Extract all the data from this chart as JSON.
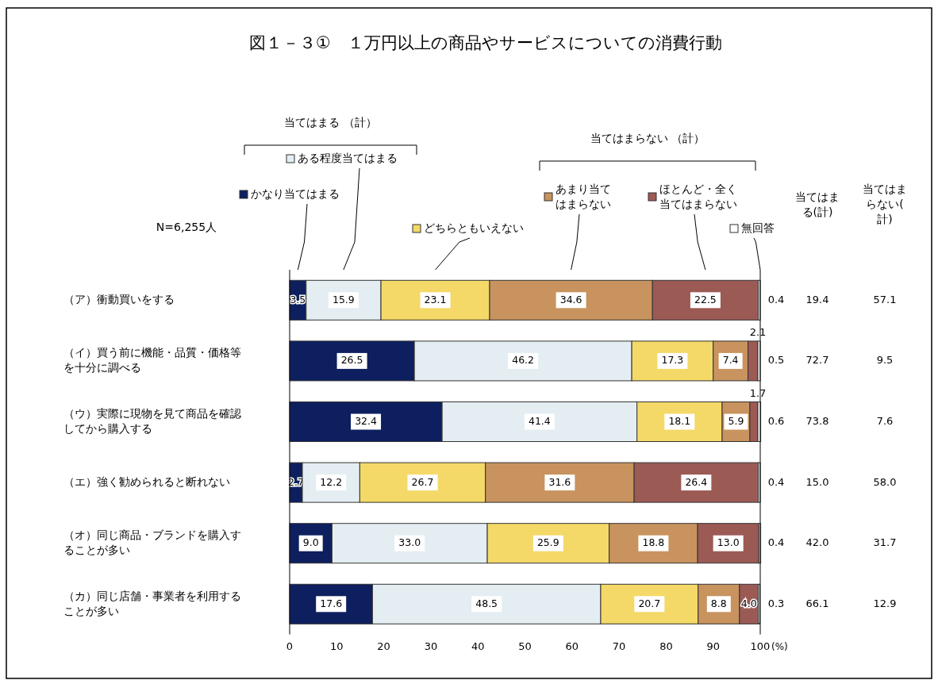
{
  "chart_data": {
    "type": "bar",
    "orientation": "horizontal",
    "stacked": true,
    "legend": "top",
    "title": "図１－３①　１万円以上の商品やサービスについての消費行動",
    "xlabel": "(%)",
    "categories": [
      "（ア）衝動買いをする",
      "（イ）買う前に機能・品質・価格等を十分に調べる",
      "（ウ）実際に現物を見て商品を確認してから購入する",
      "（エ）強く勧められると断れない",
      "（オ）同じ商品・ブランドを購入することが多い",
      "（カ）同じ店舗・事業者を利用することが多い"
    ],
    "xlim": [
      0,
      100
    ],
    "xticks": [
      0,
      10,
      20,
      30,
      40,
      50,
      60,
      70,
      80,
      90,
      100
    ],
    "series": [
      {
        "name": "かなり当てはまる",
        "color": "#0d1f5e",
        "values": [
          3.5,
          26.5,
          32.4,
          2.7,
          9.0,
          17.6
        ],
        "value_labels": [
          "3.5",
          "26.5",
          "32.4",
          "2.7",
          "9.0",
          "17.6"
        ]
      },
      {
        "name": "ある程度当てはまる",
        "color": "#e4eef2",
        "values": [
          15.9,
          46.2,
          41.4,
          12.2,
          33.0,
          48.5
        ],
        "value_labels": [
          "15.9",
          "46.2",
          "41.4",
          "12.2",
          "33.0",
          "48.5"
        ]
      },
      {
        "name": "どちらともいえない",
        "color": "#f4d968",
        "values": [
          23.1,
          17.3,
          18.1,
          26.7,
          25.9,
          20.7
        ],
        "value_labels": [
          "23.1",
          "17.3",
          "18.1",
          "26.7",
          "25.9",
          "20.7"
        ]
      },
      {
        "name": "あまり当てはまらない",
        "color": "#c8935e",
        "values": [
          34.6,
          7.4,
          5.9,
          31.6,
          18.8,
          8.8
        ],
        "value_labels": [
          "34.6",
          "7.4",
          "5.9",
          "31.6",
          "18.8",
          "8.8"
        ]
      },
      {
        "name": "ほとんど・全く当てはまらない",
        "color": "#9c5a55",
        "values": [
          22.5,
          2.1,
          1.7,
          26.4,
          13.0,
          4.0
        ],
        "value_labels": [
          "22.5",
          "2.1",
          "1.7",
          "26.4",
          "13.0",
          "4.0"
        ]
      },
      {
        "name": "無回答",
        "color": "#ffffff",
        "values": [
          0.4,
          0.5,
          0.6,
          0.4,
          0.4,
          0.3
        ],
        "value_labels": [
          "0.4",
          "0.5",
          "0.6",
          "0.4",
          "0.4",
          "0.3"
        ]
      }
    ],
    "annotations": [
      "N=6,255人",
      "当てはまる （計）",
      "当てはまらない （計）",
      "当てはまる(計)",
      "当てはまらない(計)",
      "19.4",
      "72.7",
      "73.8",
      "15.0",
      "42.0",
      "66.1",
      "57.1",
      "9.5",
      "7.6",
      "58.0",
      "31.7",
      "12.9"
    ]
  }
}
